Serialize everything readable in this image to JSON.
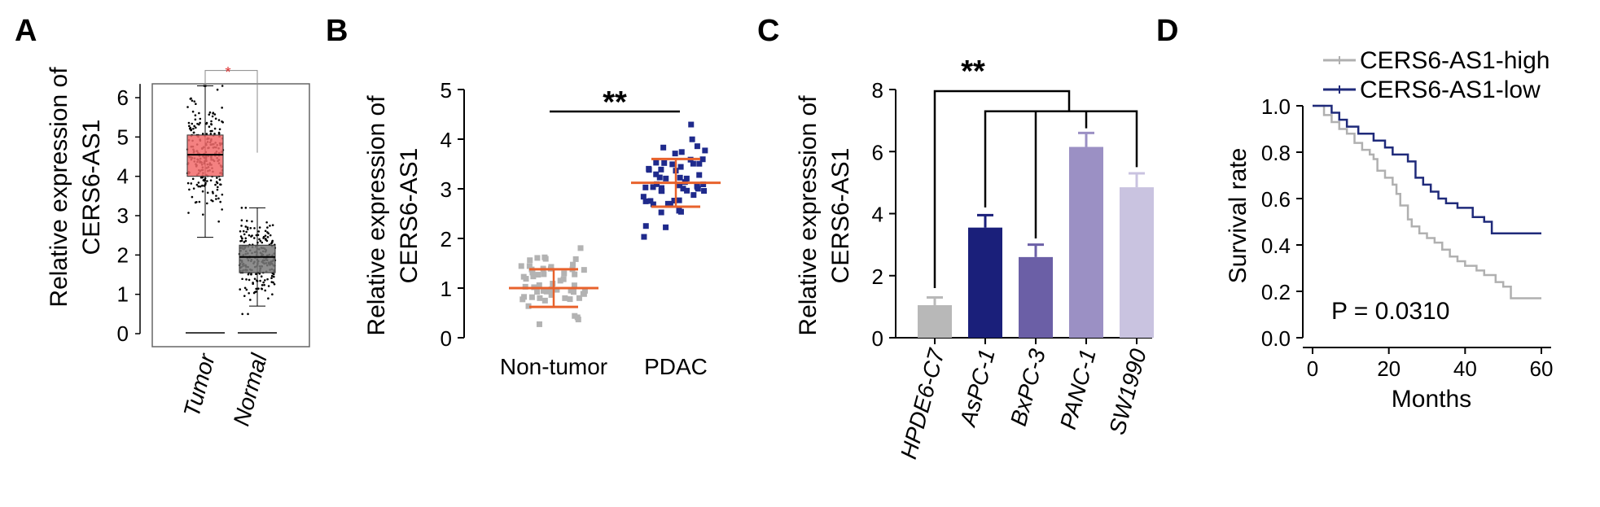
{
  "chart_data": [
    {
      "panel": "A",
      "type": "box",
      "ylabel_line1": "Relative expression of",
      "ylabel_line2": "CERS6-AS1",
      "categories": [
        "Tumor",
        "Normal"
      ],
      "ylim": [
        0,
        6.5
      ],
      "yticks": [
        0,
        1,
        2,
        3,
        4,
        5,
        6
      ],
      "significance": "*",
      "colors": [
        "#f26b6b",
        "#7a7a7a"
      ],
      "boxes": [
        {
          "name": "Tumor",
          "q1": 4.0,
          "median": 4.55,
          "q3": 5.05,
          "whisker_low": 2.45,
          "whisker_high": 6.3,
          "min_outlier": 1.0
        },
        {
          "name": "Normal",
          "q1": 1.55,
          "median": 1.95,
          "q3": 2.25,
          "whisker_low": 0.7,
          "whisker_high": 3.2,
          "max_outlier": 4.5
        }
      ]
    },
    {
      "panel": "B",
      "type": "scatter",
      "ylabel_line1": "Relative expression of",
      "ylabel_line2": "CERS6-AS1",
      "categories": [
        "Non-tumor",
        "PDAC"
      ],
      "ylim": [
        0,
        5
      ],
      "yticks": [
        0,
        1,
        2,
        3,
        4,
        5
      ],
      "significance": "**",
      "colors": [
        "#b3b3b3",
        "#1f2a8c"
      ],
      "summary": [
        {
          "name": "Non-tumor",
          "mean": 1.0,
          "sd": 0.38
        },
        {
          "name": "PDAC",
          "mean": 3.12,
          "sd": 0.48
        }
      ]
    },
    {
      "panel": "C",
      "type": "bar",
      "ylabel_line1": "Relative expression of",
      "ylabel_line2": "CERS6-AS1",
      "categories": [
        "HPDE6-C7",
        "AsPC-1",
        "BxPC-3",
        "PANC-1",
        "SW1990"
      ],
      "values": [
        1.05,
        3.55,
        2.6,
        6.15,
        4.85
      ],
      "errors": [
        0.25,
        0.4,
        0.4,
        0.45,
        0.45
      ],
      "colors": [
        "#b8b8b8",
        "#1a1f7a",
        "#6b5fa6",
        "#9b90c4",
        "#c9c3e0"
      ],
      "ylim": [
        0,
        8
      ],
      "yticks": [
        0,
        2,
        4,
        6,
        8
      ],
      "significance": "**"
    },
    {
      "panel": "D",
      "type": "line",
      "xlabel": "Months",
      "ylabel": "Survival rate",
      "xlim": [
        0,
        60
      ],
      "ylim": [
        0,
        1.0
      ],
      "xticks": [
        0,
        20,
        40,
        60
      ],
      "yticks": [
        0.0,
        0.2,
        0.4,
        0.6,
        0.8,
        1.0
      ],
      "ytick_labels": [
        "0.0",
        "0.2",
        "0.4",
        "0.6",
        "0.8",
        "1.0"
      ],
      "annotation": "P = 0.0310",
      "legend_position": "top-right",
      "series": [
        {
          "name": "CERS6-AS1-high",
          "color": "#b0b0b0",
          "x": [
            0,
            3,
            5,
            7,
            9,
            11,
            13,
            15,
            16,
            17,
            19,
            21,
            22,
            23,
            25,
            26,
            28,
            30,
            32,
            34,
            36,
            38,
            40,
            43,
            45,
            48,
            50,
            52,
            60
          ],
          "y": [
            1.0,
            0.96,
            0.93,
            0.9,
            0.88,
            0.84,
            0.81,
            0.79,
            0.77,
            0.72,
            0.69,
            0.66,
            0.62,
            0.57,
            0.51,
            0.48,
            0.45,
            0.43,
            0.41,
            0.38,
            0.35,
            0.33,
            0.31,
            0.29,
            0.27,
            0.24,
            0.22,
            0.17,
            0.17
          ]
        },
        {
          "name": "CERS6-AS1-low",
          "color": "#1f2a7a",
          "x": [
            0,
            5,
            7,
            9,
            12,
            16,
            19,
            21,
            25,
            27,
            29,
            31,
            33,
            35,
            38,
            40,
            42,
            45,
            47,
            49,
            60
          ],
          "y": [
            1.0,
            0.97,
            0.94,
            0.91,
            0.88,
            0.85,
            0.82,
            0.79,
            0.76,
            0.69,
            0.66,
            0.63,
            0.6,
            0.58,
            0.56,
            0.56,
            0.52,
            0.5,
            0.45,
            0.45,
            0.45
          ]
        }
      ]
    }
  ],
  "panel_letters": [
    "A",
    "B",
    "C",
    "D"
  ]
}
